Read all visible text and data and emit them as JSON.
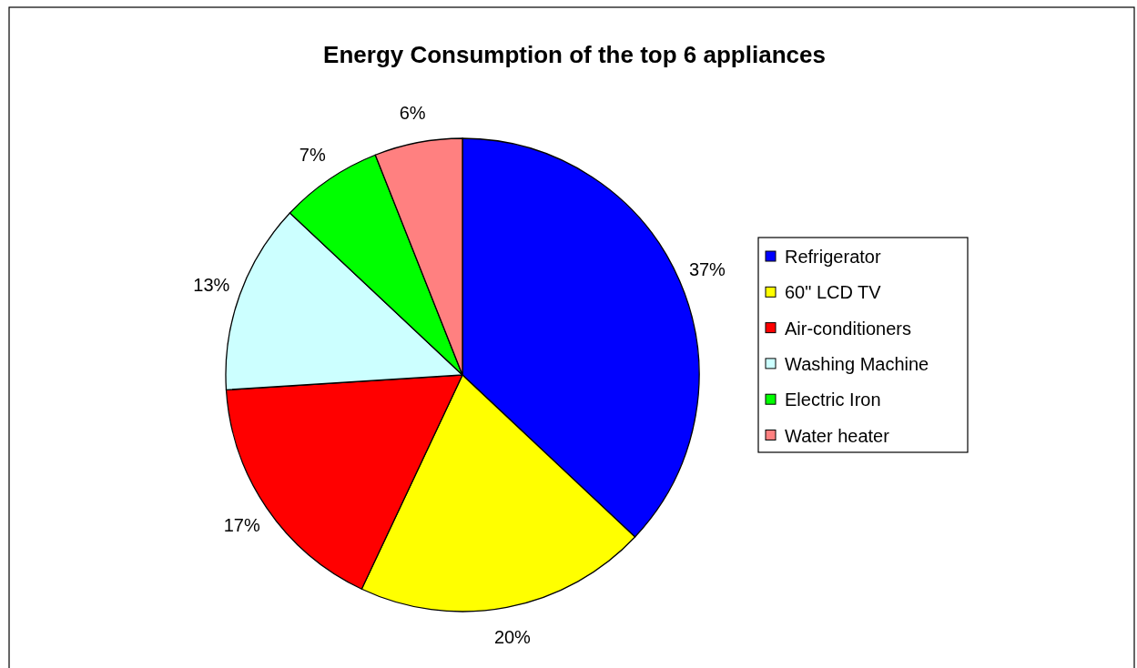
{
  "chart_data": {
    "type": "pie",
    "title": "Energy Consumption of the top 6 appliances",
    "categories": [
      "Refrigerator",
      "60\" LCD TV",
      "Air-conditioners",
      "Washing Machine",
      "Electric Iron",
      "Water heater"
    ],
    "values": [
      37,
      20,
      17,
      13,
      7,
      6
    ],
    "value_labels": [
      "37%",
      "20%",
      "17%",
      "13%",
      "7%",
      "6%"
    ],
    "colors": [
      "#0000ff",
      "#ffff00",
      "#ff0000",
      "#ccffff",
      "#00ff00",
      "#ff8080"
    ],
    "legend": "right"
  }
}
